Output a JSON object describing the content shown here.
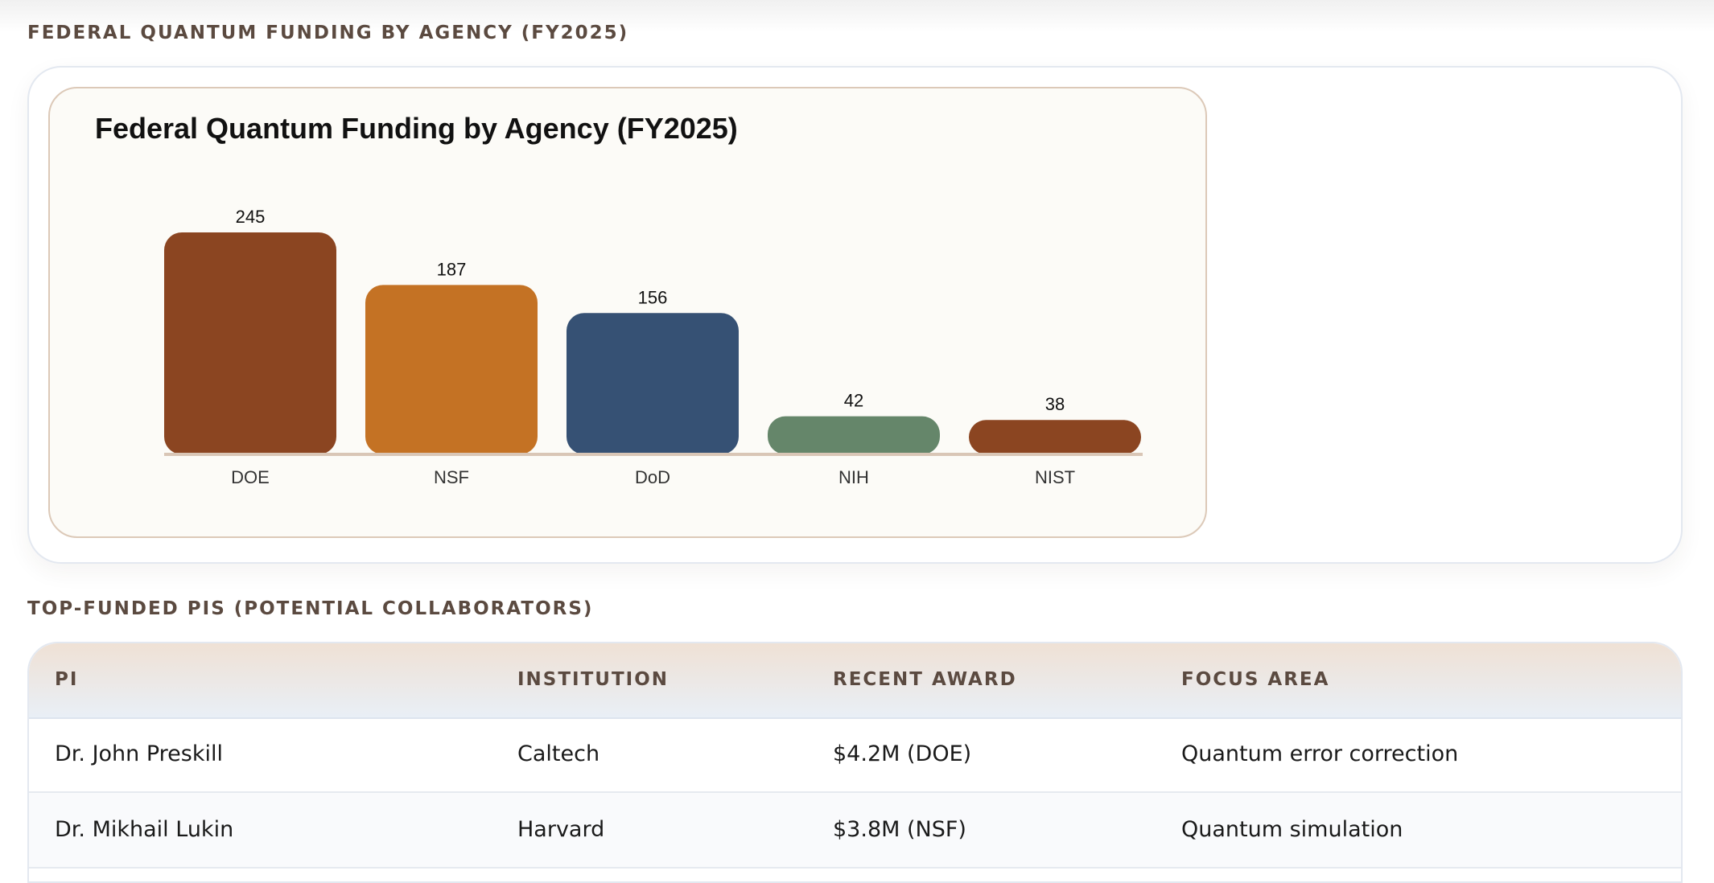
{
  "sections": {
    "funding_title": "FEDERAL QUANTUM FUNDING BY AGENCY (FY2025)",
    "pis_title": "TOP-FUNDED PIS (POTENTIAL COLLABORATORS)"
  },
  "chart_data": {
    "type": "bar",
    "title": "Federal Quantum Funding by Agency (FY2025)",
    "xlabel": "",
    "ylabel": "",
    "categories": [
      "DOE",
      "NSF",
      "DoD",
      "NIH",
      "NIST"
    ],
    "values": [
      245,
      187,
      156,
      42,
      38
    ],
    "colors": [
      "#8b4521",
      "#c47224",
      "#365174",
      "#65866a",
      "#8b4521"
    ],
    "ylim": [
      0,
      245
    ],
    "grid": false,
    "legend": "none"
  },
  "table": {
    "headers": [
      "PI",
      "INSTITUTION",
      "RECENT AWARD",
      "FOCUS AREA"
    ],
    "rows": [
      [
        "Dr. John Preskill",
        "Caltech",
        "$4.2M (DOE)",
        "Quantum error correction"
      ],
      [
        "Dr. Mikhail Lukin",
        "Harvard",
        "$3.8M (NSF)",
        "Quantum simulation"
      ]
    ]
  }
}
